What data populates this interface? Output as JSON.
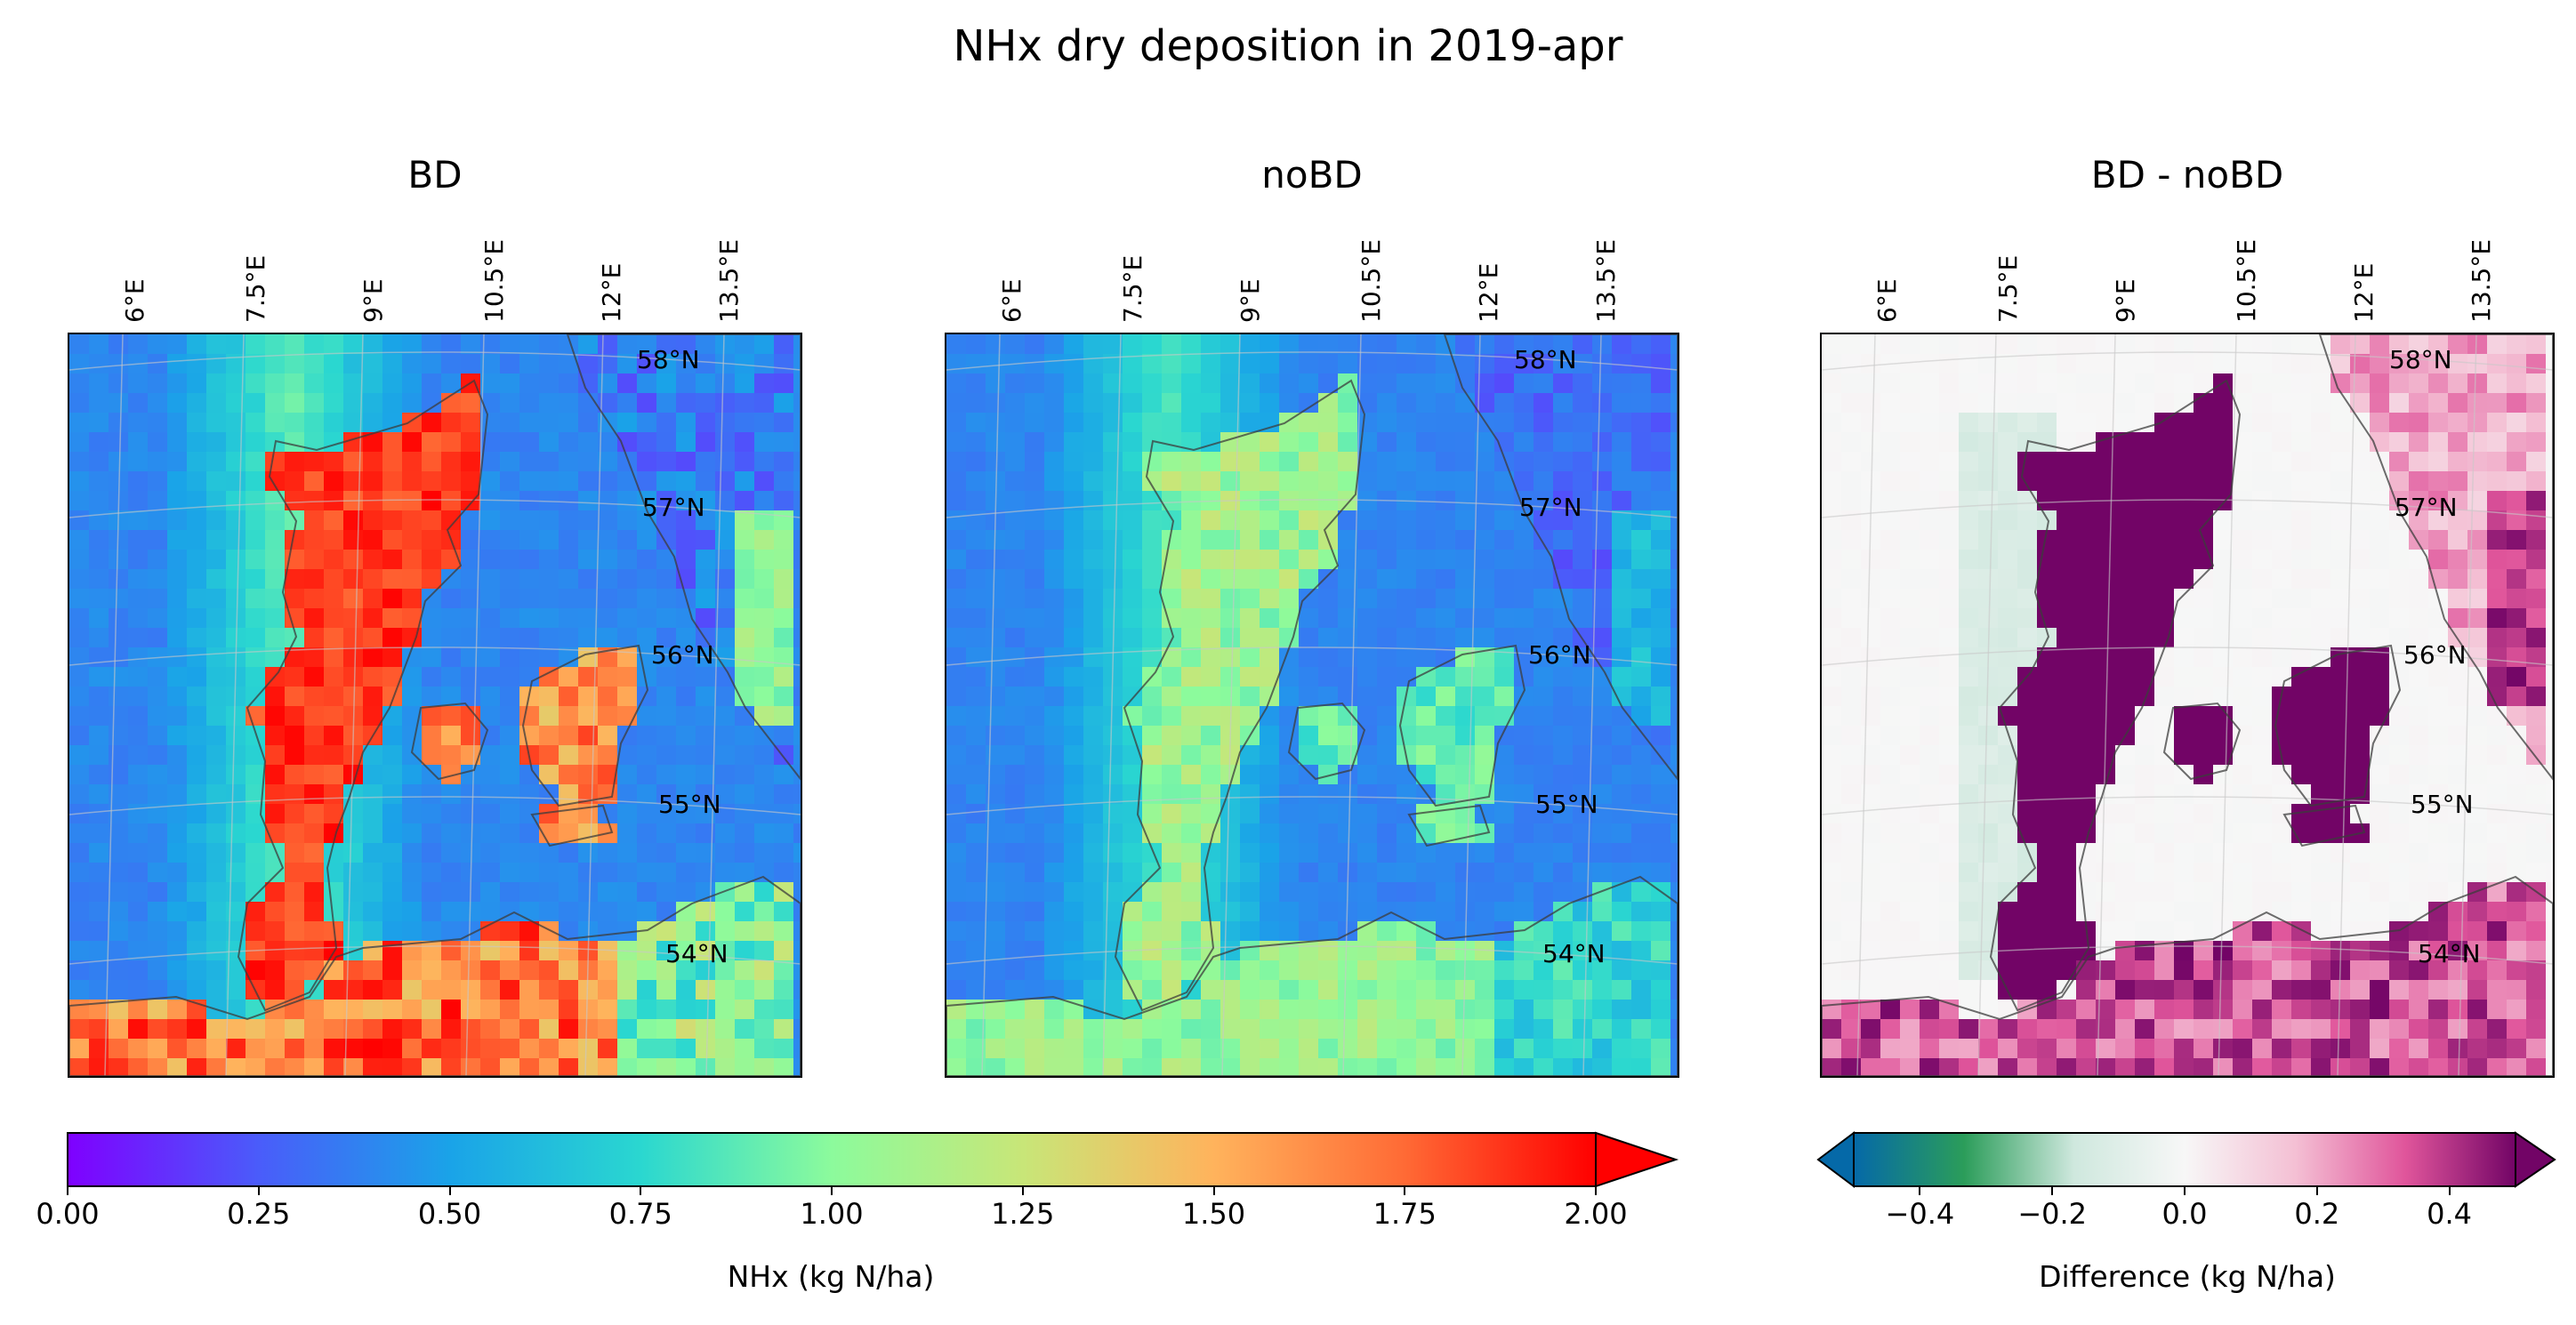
{
  "figure": {
    "title": "NHx dry deposition in 2019-apr"
  },
  "panels": [
    {
      "title": "BD"
    },
    {
      "title": "noBD"
    },
    {
      "title": "BD - noBD"
    }
  ],
  "lon_labels": [
    "6°E",
    "7.5°E",
    "9°E",
    "10.5°E",
    "12°E",
    "13.5°E"
  ],
  "lat_labels": [
    "58°N",
    "57°N",
    "56°N",
    "55°N",
    "54°N"
  ],
  "colorbars": {
    "nhx": {
      "label": "NHx (kg N/ha)",
      "ticks": [
        "0.00",
        "0.25",
        "0.50",
        "0.75",
        "1.00",
        "1.25",
        "1.50",
        "1.75",
        "2.00"
      ],
      "range": [
        0,
        2
      ],
      "extend": "max",
      "colormap": "rainbow"
    },
    "diff": {
      "label": "Difference (kg N/ha)",
      "ticks": [
        "−0.4",
        "−0.2",
        "0.0",
        "0.2",
        "0.4"
      ],
      "range": [
        -0.5,
        0.5
      ],
      "extend": "both",
      "colormap": "diverging teal-white-magenta"
    }
  },
  "chart_data": [
    {
      "type": "heatmap",
      "title": "BD",
      "value_range": [
        0,
        2
      ],
      "units": "kg N/ha",
      "summary": {
        "sea": 0.35,
        "land_jutland": 2.0,
        "land_islands": 1.85
      }
    },
    {
      "type": "heatmap",
      "title": "noBD",
      "value_range": [
        0,
        2
      ],
      "units": "kg N/ha",
      "summary": {
        "sea": 0.35,
        "land_jutland": 1.25,
        "land_islands": 1.05
      }
    },
    {
      "type": "heatmap",
      "title": "BD - noBD",
      "value_range": [
        -0.5,
        0.5
      ],
      "units": "kg N/ha",
      "summary": {
        "sea": 0.0,
        "land_denmark": 0.5,
        "sweden": 0.25,
        "coastal_north_sea": -0.1
      }
    }
  ],
  "colors": {
    "rainbow": [
      "#7f00ff",
      "#4a5cfa",
      "#1aa3e8",
      "#2ad7d0",
      "#8cfb9c",
      "#c8e678",
      "#ffb35c",
      "#ff6a35",
      "#ff0000"
    ],
    "diverging": [
      "#0569a8",
      "#2b9d5a",
      "#cfe8de",
      "#f7f7f7",
      "#f4c0d4",
      "#e0559b",
      "#720466"
    ]
  }
}
